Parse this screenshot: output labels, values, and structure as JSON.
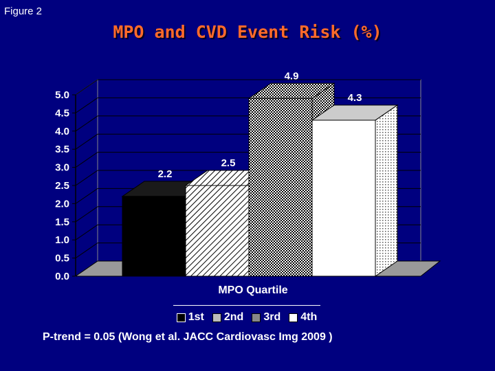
{
  "figure_label": "Figure 2",
  "footnote": "P-trend = 0.05 (Wong et al. JACC Cardiovasc Img 2009 )",
  "colors": {
    "background": "#00007f",
    "title": "#ff6a2a",
    "text": "#ffffff"
  },
  "chart_data": {
    "type": "bar",
    "title": "MPO and CVD Event Risk (%)",
    "xlabel": "MPO Quartile",
    "ylabel": "",
    "ylim": [
      0,
      5.0
    ],
    "ytick_step": 0.5,
    "ytick_labels": [
      "0.0",
      "0.5",
      "1.0",
      "1.5",
      "2.0",
      "2.5",
      "3.0",
      "3.5",
      "4.0",
      "4.5",
      "5.0"
    ],
    "categories": [
      "1st",
      "2nd",
      "3rd",
      "4th"
    ],
    "values": [
      2.2,
      2.5,
      4.9,
      4.3
    ],
    "data_labels": [
      "2.2",
      "2.5",
      "4.9",
      "4.3"
    ],
    "legend": [
      "1st",
      "2nd",
      "3rd",
      "4th"
    ],
    "legend_placement": "bottom",
    "grid": true,
    "three_d": true
  }
}
